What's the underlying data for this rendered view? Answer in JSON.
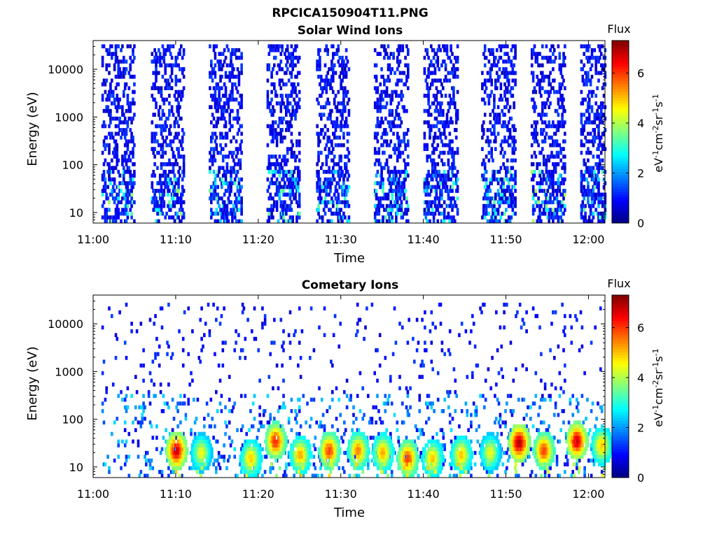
{
  "figure_title": "RPCICA150904T11.PNG",
  "chart_data": [
    {
      "type": "heatmap",
      "title": "Solar Wind Ions",
      "xlabel": "Time",
      "ylabel": "Energy (eV)",
      "x_ticks": [
        "11:00",
        "11:10",
        "11:20",
        "11:30",
        "11:40",
        "11:50",
        "12:00"
      ],
      "x_range": [
        "11:00",
        "12:02"
      ],
      "y_scale": "log",
      "y_ticks": [
        "10",
        "100",
        "1000",
        "10000"
      ],
      "y_range": [
        6,
        40000
      ],
      "colorbar": {
        "label": "Flux",
        "units": "eV-1cm-2sr-1s-1",
        "ticks": [
          "0",
          "2",
          "4",
          "6"
        ],
        "range": [
          0,
          7.3
        ],
        "colormap": "jet"
      },
      "bursts": [
        {
          "start": "11:01",
          "end": "11:05",
          "min_energy_eV": 6,
          "max_energy_eV": 30000,
          "typical_flux": 1.0,
          "peak_flux": 4.0
        },
        {
          "start": "11:07",
          "end": "11:11",
          "min_energy_eV": 6,
          "max_energy_eV": 30000,
          "typical_flux": 1.0,
          "peak_flux": 4.0
        },
        {
          "start": "11:14",
          "end": "11:18",
          "min_energy_eV": 6,
          "max_energy_eV": 30000,
          "typical_flux": 1.0,
          "peak_flux": 3.5
        },
        {
          "start": "11:21",
          "end": "11:25",
          "min_energy_eV": 6,
          "max_energy_eV": 30000,
          "typical_flux": 1.0,
          "peak_flux": 3.5
        },
        {
          "start": "11:27",
          "end": "11:31",
          "min_energy_eV": 6,
          "max_energy_eV": 30000,
          "typical_flux": 1.0,
          "peak_flux": 3.5
        },
        {
          "start": "11:34",
          "end": "11:38",
          "min_energy_eV": 6,
          "max_energy_eV": 30000,
          "typical_flux": 1.0,
          "peak_flux": 3.5
        },
        {
          "start": "11:40",
          "end": "11:44",
          "min_energy_eV": 6,
          "max_energy_eV": 30000,
          "typical_flux": 1.0,
          "peak_flux": 3.5
        },
        {
          "start": "11:47",
          "end": "11:51",
          "min_energy_eV": 6,
          "max_energy_eV": 30000,
          "typical_flux": 1.0,
          "peak_flux": 3.5
        },
        {
          "start": "11:53",
          "end": "11:57",
          "min_energy_eV": 6,
          "max_energy_eV": 30000,
          "typical_flux": 1.0,
          "peak_flux": 4.0
        },
        {
          "start": "11:59",
          "end": "12:02",
          "min_energy_eV": 6,
          "max_energy_eV": 30000,
          "typical_flux": 1.0,
          "peak_flux": 3.5
        }
      ]
    },
    {
      "type": "heatmap",
      "title": "Cometary Ions",
      "xlabel": "Time",
      "ylabel": "Energy (eV)",
      "x_ticks": [
        "11:00",
        "11:10",
        "11:20",
        "11:30",
        "11:40",
        "11:50",
        "12:00"
      ],
      "x_range": [
        "11:00",
        "12:02"
      ],
      "y_scale": "log",
      "y_ticks": [
        "10",
        "100",
        "1000",
        "10000"
      ],
      "y_range": [
        6,
        40000
      ],
      "colorbar": {
        "label": "Flux",
        "units": "eV-1cm-2sr-1s-1",
        "ticks": [
          "0",
          "2",
          "4",
          "6"
        ],
        "range": [
          0,
          7.3
        ],
        "colormap": "jet"
      },
      "hotspots": [
        {
          "time": "11:10",
          "energy_eV": 22,
          "flux": 6.8
        },
        {
          "time": "11:13",
          "energy_eV": 20,
          "flux": 4.5
        },
        {
          "time": "11:19",
          "energy_eV": 15,
          "flux": 5.0
        },
        {
          "time": "11:22",
          "energy_eV": 35,
          "flux": 6.2
        },
        {
          "time": "11:25",
          "energy_eV": 18,
          "flux": 5.2
        },
        {
          "time": "11:28.5",
          "energy_eV": 22,
          "flux": 6.0
        },
        {
          "time": "11:32",
          "energy_eV": 22,
          "flux": 5.5
        },
        {
          "time": "11:35",
          "energy_eV": 20,
          "flux": 5.2
        },
        {
          "time": "11:38",
          "energy_eV": 15,
          "flux": 6.0
        },
        {
          "time": "11:41",
          "energy_eV": 15,
          "flux": 5.0
        },
        {
          "time": "11:44.5",
          "energy_eV": 18,
          "flux": 5.0
        },
        {
          "time": "11:48",
          "energy_eV": 20,
          "flux": 4.5
        },
        {
          "time": "11:51.5",
          "energy_eV": 32,
          "flux": 7.0
        },
        {
          "time": "11:54.5",
          "energy_eV": 22,
          "flux": 6.0
        },
        {
          "time": "11:58.5",
          "energy_eV": 35,
          "flux": 6.8
        },
        {
          "time": "12:01.5",
          "energy_eV": 28,
          "flux": 5.0
        }
      ]
    }
  ]
}
